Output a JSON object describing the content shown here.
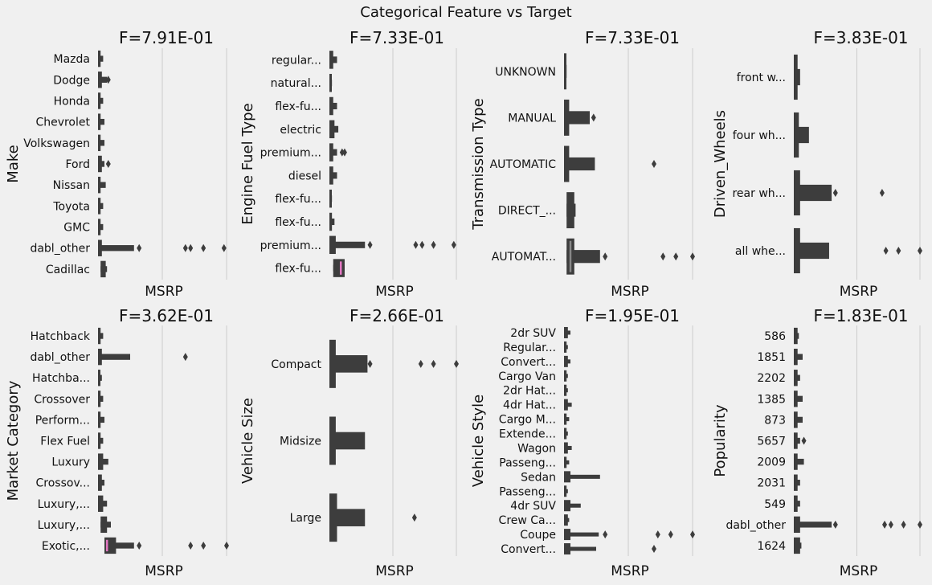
{
  "chart_data": [
    {
      "type": "boxenplot",
      "suptitle": "Categorical Feature vs Target",
      "xlabel": "MSRP",
      "panels": [
        {
          "title": "F=7.91E-01",
          "ylabel": "Make",
          "categories": [
            "Mazda",
            "Dodge",
            "Honda",
            "Chevrolet",
            "Volkswagen",
            "Ford",
            "Nissan",
            "Toyota",
            "GMC",
            "dabl_other",
            "Cadillac"
          ],
          "boxes": [
            {
              "q1": 0.0,
              "q3": 0.02,
              "max": 0.04,
              "outliers": []
            },
            {
              "q1": 0.0,
              "q3": 0.03,
              "max": 0.07,
              "outliers": [
                0.08
              ]
            },
            {
              "q1": 0.0,
              "q3": 0.02,
              "max": 0.04,
              "outliers": []
            },
            {
              "q1": 0.0,
              "q3": 0.02,
              "max": 0.05,
              "outliers": []
            },
            {
              "q1": 0.0,
              "q3": 0.02,
              "max": 0.05,
              "outliers": []
            },
            {
              "q1": 0.0,
              "q3": 0.03,
              "max": 0.05,
              "outliers": [
                0.08
              ]
            },
            {
              "q1": 0.0,
              "q3": 0.02,
              "max": 0.06,
              "outliers": []
            },
            {
              "q1": 0.0,
              "q3": 0.02,
              "max": 0.04,
              "outliers": []
            },
            {
              "q1": 0.0,
              "q3": 0.02,
              "max": 0.04,
              "outliers": []
            },
            {
              "q1": 0.0,
              "q3": 0.03,
              "max": 0.28,
              "outliers": [
                0.32,
                0.68,
                0.72,
                0.82,
                0.98
              ]
            },
            {
              "q1": 0.02,
              "q3": 0.06,
              "max": 0.07,
              "outliers": []
            }
          ]
        },
        {
          "title": "F=7.33E-01",
          "ylabel": "Engine Fuel Type",
          "categories": [
            "regular...",
            "natural...",
            "flex-fu...",
            "electric",
            "premium...",
            "diesel",
            "flex-fu...",
            "flex-fu...",
            "premium...",
            "flex-fu..."
          ],
          "boxes": [
            {
              "q1": 0.0,
              "q3": 0.03,
              "max": 0.06,
              "outliers": []
            },
            {
              "q1": 0.0,
              "q3": 0.01,
              "max": 0.02,
              "outliers": []
            },
            {
              "q1": 0.0,
              "q3": 0.03,
              "max": 0.06,
              "outliers": []
            },
            {
              "q1": 0.0,
              "q3": 0.04,
              "max": 0.07,
              "outliers": []
            },
            {
              "q1": 0.0,
              "q3": 0.03,
              "max": 0.06,
              "outliers": [
                0.1,
                0.12
              ]
            },
            {
              "q1": 0.0,
              "q3": 0.03,
              "max": 0.06,
              "outliers": []
            },
            {
              "q1": 0.0,
              "q3": 0.01,
              "max": 0.02,
              "outliers": []
            },
            {
              "q1": 0.0,
              "q3": 0.02,
              "max": 0.04,
              "outliers": []
            },
            {
              "q1": 0.0,
              "q3": 0.05,
              "max": 0.28,
              "outliers": [
                0.32,
                0.68,
                0.73,
                0.82,
                0.98
              ]
            },
            {
              "q1": 0.03,
              "q3": 0.12,
              "max": 0.12,
              "outliers": [],
              "median": 0.09,
              "median_color": "#e377c2"
            }
          ]
        },
        {
          "title": "F=7.33E-01",
          "ylabel": "Transmission Type",
          "categories": [
            "UNKNOWN",
            "MANUAL",
            "AUTOMATIC",
            "DIRECT_...",
            "AUTOMAT..."
          ],
          "boxes": [
            {
              "q1": 0.0,
              "q3": 0.01,
              "max": 0.02,
              "outliers": []
            },
            {
              "q1": 0.0,
              "q3": 0.04,
              "max": 0.2,
              "outliers": [
                0.23
              ]
            },
            {
              "q1": 0.0,
              "q3": 0.04,
              "max": 0.24,
              "outliers": [
                0.7
              ]
            },
            {
              "q1": 0.02,
              "q3": 0.08,
              "max": 0.09,
              "outliers": []
            },
            {
              "q1": 0.02,
              "q3": 0.08,
              "max": 0.28,
              "outliers": [
                0.32,
                0.77,
                0.87,
                1.0
              ],
              "median": 0.05,
              "median_color": "#888888"
            }
          ]
        },
        {
          "title": "F=3.83E-01",
          "ylabel": "Driven_Wheels",
          "categories": [
            "front w...",
            "four wh...",
            "rear wh...",
            "all whe..."
          ],
          "boxes": [
            {
              "q1": 0.0,
              "q3": 0.03,
              "max": 0.05,
              "outliers": []
            },
            {
              "q1": 0.0,
              "q3": 0.04,
              "max": 0.12,
              "outliers": []
            },
            {
              "q1": 0.0,
              "q3": 0.05,
              "max": 0.3,
              "outliers": [
                0.33,
                0.7
              ]
            },
            {
              "q1": 0.0,
              "q3": 0.05,
              "max": 0.28,
              "outliers": [
                0.73,
                0.83,
                1.0
              ]
            }
          ]
        },
        {
          "title": "F=3.62E-01",
          "ylabel": "Market Category",
          "categories": [
            "Hatchback",
            "dabl_other",
            "Hatchba...",
            "Crossover",
            "Perform...",
            "Flex Fuel",
            "Luxury",
            "Crossov...",
            "Luxury,...",
            "Luxury,...",
            "Exotic,..."
          ],
          "boxes": [
            {
              "q1": 0.0,
              "q3": 0.02,
              "max": 0.04,
              "outliers": []
            },
            {
              "q1": 0.0,
              "q3": 0.03,
              "max": 0.25,
              "outliers": [
                0.68
              ]
            },
            {
              "q1": 0.0,
              "q3": 0.01,
              "max": 0.03,
              "outliers": []
            },
            {
              "q1": 0.0,
              "q3": 0.02,
              "max": 0.04,
              "outliers": []
            },
            {
              "q1": 0.0,
              "q3": 0.02,
              "max": 0.05,
              "outliers": []
            },
            {
              "q1": 0.0,
              "q3": 0.02,
              "max": 0.04,
              "outliers": []
            },
            {
              "q1": 0.0,
              "q3": 0.04,
              "max": 0.08,
              "outliers": []
            },
            {
              "q1": 0.0,
              "q3": 0.03,
              "max": 0.05,
              "outliers": []
            },
            {
              "q1": 0.0,
              "q3": 0.04,
              "max": 0.07,
              "outliers": []
            },
            {
              "q1": 0.02,
              "q3": 0.07,
              "max": 0.1,
              "outliers": []
            },
            {
              "q1": 0.05,
              "q3": 0.14,
              "max": 0.28,
              "outliers": [
                0.32,
                0.72,
                0.82,
                1.0
              ],
              "median": 0.07,
              "median_color": "#e377c2"
            }
          ]
        },
        {
          "title": "F=2.66E-01",
          "ylabel": "Vehicle Size",
          "categories": [
            "Compact",
            "Midsize",
            "Large"
          ],
          "boxes": [
            {
              "q1": 0.0,
              "q3": 0.05,
              "max": 0.3,
              "outliers": [
                0.32,
                0.72,
                0.82,
                1.0
              ]
            },
            {
              "q1": 0.0,
              "q3": 0.05,
              "max": 0.28,
              "outliers": []
            },
            {
              "q1": 0.0,
              "q3": 0.06,
              "max": 0.28,
              "outliers": [
                0.67
              ]
            }
          ]
        },
        {
          "title": "F=1.95E-01",
          "ylabel": "Vehicle Style",
          "categories": [
            "2dr SUV",
            "Regular...",
            "Convert...",
            "Cargo Van",
            "2dr Hat...",
            "4dr Hat...",
            "Cargo M...",
            "Extende...",
            "Wagon",
            "Passeng...",
            "Sedan",
            "Passeng...",
            "4dr SUV",
            "Crew Ca...",
            "Coupe",
            "Convert..."
          ],
          "boxes": [
            {
              "q1": 0.0,
              "q3": 0.03,
              "max": 0.05,
              "outliers": []
            },
            {
              "q1": 0.0,
              "q3": 0.02,
              "max": 0.03,
              "outliers": []
            },
            {
              "q1": 0.0,
              "q3": 0.03,
              "max": 0.05,
              "outliers": []
            },
            {
              "q1": 0.0,
              "q3": 0.02,
              "max": 0.03,
              "outliers": []
            },
            {
              "q1": 0.0,
              "q3": 0.02,
              "max": 0.03,
              "outliers": []
            },
            {
              "q1": 0.0,
              "q3": 0.03,
              "max": 0.06,
              "outliers": []
            },
            {
              "q1": 0.0,
              "q3": 0.02,
              "max": 0.04,
              "outliers": []
            },
            {
              "q1": 0.0,
              "q3": 0.02,
              "max": 0.03,
              "outliers": []
            },
            {
              "q1": 0.0,
              "q3": 0.03,
              "max": 0.06,
              "outliers": []
            },
            {
              "q1": 0.0,
              "q3": 0.02,
              "max": 0.04,
              "outliers": []
            },
            {
              "q1": 0.0,
              "q3": 0.05,
              "max": 0.28,
              "outliers": []
            },
            {
              "q1": 0.0,
              "q3": 0.02,
              "max": 0.03,
              "outliers": []
            },
            {
              "q1": 0.0,
              "q3": 0.05,
              "max": 0.13,
              "outliers": []
            },
            {
              "q1": 0.0,
              "q3": 0.03,
              "max": 0.04,
              "outliers": []
            },
            {
              "q1": 0.0,
              "q3": 0.05,
              "max": 0.27,
              "outliers": [
                0.32,
                0.73,
                0.83,
                1.0
              ]
            },
            {
              "q1": 0.0,
              "q3": 0.05,
              "max": 0.25,
              "outliers": [
                0.7
              ]
            }
          ]
        },
        {
          "title": "F=1.83E-01",
          "ylabel": "Popularity",
          "categories": [
            "586",
            "1851",
            "2202",
            "1385",
            "873",
            "5657",
            "2009",
            "2031",
            "549",
            "dabl_other",
            "1624"
          ],
          "boxes": [
            {
              "q1": 0.0,
              "q3": 0.03,
              "max": 0.04,
              "outliers": []
            },
            {
              "q1": 0.0,
              "q3": 0.03,
              "max": 0.07,
              "outliers": []
            },
            {
              "q1": 0.0,
              "q3": 0.03,
              "max": 0.05,
              "outliers": []
            },
            {
              "q1": 0.0,
              "q3": 0.03,
              "max": 0.07,
              "outliers": []
            },
            {
              "q1": 0.0,
              "q3": 0.03,
              "max": 0.07,
              "outliers": []
            },
            {
              "q1": 0.0,
              "q3": 0.03,
              "max": 0.05,
              "outliers": [
                0.08
              ]
            },
            {
              "q1": 0.0,
              "q3": 0.03,
              "max": 0.08,
              "outliers": []
            },
            {
              "q1": 0.0,
              "q3": 0.03,
              "max": 0.05,
              "outliers": []
            },
            {
              "q1": 0.0,
              "q3": 0.03,
              "max": 0.05,
              "outliers": []
            },
            {
              "q1": 0.0,
              "q3": 0.05,
              "max": 0.3,
              "outliers": [
                0.33,
                0.72,
                0.77,
                0.87,
                1.0
              ]
            },
            {
              "q1": 0.0,
              "q3": 0.05,
              "max": 0.06,
              "outliers": []
            }
          ]
        }
      ],
      "xlim": [
        0,
        1
      ],
      "gridlines_x": [
        0.5,
        1.0
      ],
      "grid": true,
      "colors": {
        "background": "#f0f0f0",
        "box": "#3d3d3d",
        "grid": "#cbcbcb"
      }
    }
  ]
}
